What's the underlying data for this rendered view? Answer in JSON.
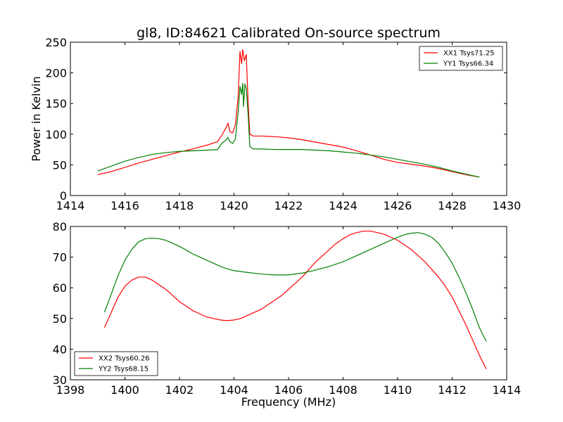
{
  "chart_data": [
    {
      "type": "line",
      "title": "gl8, ID:84621 Calibrated On-source spectrum",
      "xlabel": "",
      "ylabel": "Power in Kelvin",
      "xlim": [
        1414,
        1430
      ],
      "ylim": [
        0,
        250
      ],
      "xticks": [
        1414,
        1416,
        1418,
        1420,
        1422,
        1424,
        1426,
        1428,
        1430
      ],
      "yticks": [
        0,
        50,
        100,
        150,
        200,
        250
      ],
      "grid": false,
      "legend": "top-right",
      "series": [
        {
          "name": "XX1 Tsys71.25",
          "color": "#ff0000",
          "points": [
            [
              1415.0,
              34
            ],
            [
              1415.5,
              39
            ],
            [
              1416.0,
              46
            ],
            [
              1416.5,
              53
            ],
            [
              1417.0,
              59
            ],
            [
              1417.5,
              65
            ],
            [
              1418.0,
              71
            ],
            [
              1418.5,
              76
            ],
            [
              1419.0,
              82
            ],
            [
              1419.4,
              88
            ],
            [
              1419.55,
              98
            ],
            [
              1419.7,
              110
            ],
            [
              1419.78,
              118
            ],
            [
              1419.85,
              104
            ],
            [
              1419.95,
              102
            ],
            [
              1420.05,
              115
            ],
            [
              1420.15,
              160
            ],
            [
              1420.22,
              235
            ],
            [
              1420.28,
              215
            ],
            [
              1420.32,
              238
            ],
            [
              1420.38,
              220
            ],
            [
              1420.45,
              230
            ],
            [
              1420.52,
              150
            ],
            [
              1420.58,
              100
            ],
            [
              1420.7,
              97
            ],
            [
              1421.0,
              97
            ],
            [
              1421.5,
              96
            ],
            [
              1422.0,
              94
            ],
            [
              1422.5,
              91
            ],
            [
              1423.0,
              87
            ],
            [
              1423.5,
              83
            ],
            [
              1424.0,
              79
            ],
            [
              1424.5,
              73
            ],
            [
              1425.0,
              66
            ],
            [
              1425.5,
              59
            ],
            [
              1426.0,
              54
            ],
            [
              1426.5,
              51
            ],
            [
              1427.0,
              48
            ],
            [
              1427.5,
              44
            ],
            [
              1428.0,
              39
            ],
            [
              1428.5,
              34
            ],
            [
              1429.0,
              30
            ]
          ]
        },
        {
          "name": "YY1 Tsys66.34",
          "color": "#008000",
          "points": [
            [
              1415.0,
              40
            ],
            [
              1415.5,
              48
            ],
            [
              1416.0,
              56
            ],
            [
              1416.5,
              62
            ],
            [
              1417.0,
              67
            ],
            [
              1417.5,
              70
            ],
            [
              1418.0,
              72
            ],
            [
              1418.5,
              73
            ],
            [
              1419.0,
              74
            ],
            [
              1419.4,
              75
            ],
            [
              1419.55,
              85
            ],
            [
              1419.7,
              90
            ],
            [
              1419.78,
              95
            ],
            [
              1419.85,
              88
            ],
            [
              1419.95,
              85
            ],
            [
              1420.05,
              92
            ],
            [
              1420.15,
              135
            ],
            [
              1420.22,
              178
            ],
            [
              1420.28,
              165
            ],
            [
              1420.32,
              183
            ],
            [
              1420.35,
              145
            ],
            [
              1420.4,
              182
            ],
            [
              1420.45,
              175
            ],
            [
              1420.52,
              130
            ],
            [
              1420.58,
              80
            ],
            [
              1420.7,
              76
            ],
            [
              1421.0,
              76
            ],
            [
              1421.5,
              75
            ],
            [
              1422.0,
              75
            ],
            [
              1422.5,
              75
            ],
            [
              1423.0,
              74
            ],
            [
              1423.5,
              73
            ],
            [
              1424.0,
              71
            ],
            [
              1424.5,
              69
            ],
            [
              1425.0,
              66
            ],
            [
              1425.5,
              63
            ],
            [
              1426.0,
              59
            ],
            [
              1426.5,
              55
            ],
            [
              1427.0,
              51
            ],
            [
              1427.5,
              46
            ],
            [
              1428.0,
              40
            ],
            [
              1428.5,
              35
            ],
            [
              1429.0,
              30
            ]
          ]
        }
      ]
    },
    {
      "type": "line",
      "title": "",
      "xlabel": "Frequency (MHz)",
      "ylabel": "",
      "xlim": [
        1398,
        1414
      ],
      "ylim": [
        30,
        80
      ],
      "xticks": [
        1398,
        1400,
        1402,
        1404,
        1406,
        1408,
        1410,
        1412,
        1414
      ],
      "yticks": [
        30,
        40,
        50,
        60,
        70,
        80
      ],
      "grid": false,
      "legend": "bottom-left",
      "series": [
        {
          "name": "XX2 Tsys60.26",
          "color": "#ff0000",
          "points": [
            [
              1399.25,
              47
            ],
            [
              1399.5,
              52
            ],
            [
              1399.75,
              57
            ],
            [
              1400.0,
              60.5
            ],
            [
              1400.25,
              62.5
            ],
            [
              1400.5,
              63.5
            ],
            [
              1400.75,
              63.5
            ],
            [
              1401.0,
              62.5
            ],
            [
              1401.25,
              61
            ],
            [
              1401.5,
              59.5
            ],
            [
              1401.75,
              57.5
            ],
            [
              1402.0,
              55.5
            ],
            [
              1402.25,
              54
            ],
            [
              1402.5,
              52.5
            ],
            [
              1402.75,
              51.5
            ],
            [
              1403.0,
              50.5
            ],
            [
              1403.25,
              50
            ],
            [
              1403.5,
              49.5
            ],
            [
              1403.75,
              49.3
            ],
            [
              1404.0,
              49.5
            ],
            [
              1404.25,
              50
            ],
            [
              1404.5,
              51
            ],
            [
              1404.75,
              52
            ],
            [
              1405.0,
              53
            ],
            [
              1405.25,
              54.5
            ],
            [
              1405.5,
              56
            ],
            [
              1405.75,
              57.5
            ],
            [
              1406.0,
              59.5
            ],
            [
              1406.25,
              61.5
            ],
            [
              1406.5,
              63.5
            ],
            [
              1406.75,
              66
            ],
            [
              1407.0,
              68.5
            ],
            [
              1407.25,
              70.5
            ],
            [
              1407.5,
              72.5
            ],
            [
              1407.75,
              74.5
            ],
            [
              1408.0,
              76
            ],
            [
              1408.25,
              77.3
            ],
            [
              1408.5,
              78
            ],
            [
              1408.75,
              78.5
            ],
            [
              1409.0,
              78.5
            ],
            [
              1409.25,
              78
            ],
            [
              1409.5,
              77.5
            ],
            [
              1409.75,
              76.5
            ],
            [
              1410.0,
              75.5
            ],
            [
              1410.25,
              74
            ],
            [
              1410.5,
              72.5
            ],
            [
              1410.75,
              70.5
            ],
            [
              1411.0,
              68.5
            ],
            [
              1411.25,
              66
            ],
            [
              1411.5,
              63.5
            ],
            [
              1411.75,
              60.5
            ],
            [
              1412.0,
              57
            ],
            [
              1412.25,
              52.5
            ],
            [
              1412.5,
              48
            ],
            [
              1412.75,
              43
            ],
            [
              1413.0,
              38
            ],
            [
              1413.25,
              33.5
            ]
          ]
        },
        {
          "name": "YY2 Tsys68.15",
          "color": "#008000",
          "points": [
            [
              1399.25,
              52
            ],
            [
              1399.5,
              58
            ],
            [
              1399.75,
              64
            ],
            [
              1400.0,
              69
            ],
            [
              1400.25,
              72.5
            ],
            [
              1400.5,
              75
            ],
            [
              1400.75,
              76
            ],
            [
              1401.0,
              76.2
            ],
            [
              1401.25,
              76
            ],
            [
              1401.5,
              75.5
            ],
            [
              1401.75,
              74.5
            ],
            [
              1402.0,
              73.5
            ],
            [
              1402.25,
              72.3
            ],
            [
              1402.5,
              71
            ],
            [
              1402.75,
              70
            ],
            [
              1403.0,
              69
            ],
            [
              1403.25,
              68
            ],
            [
              1403.5,
              67
            ],
            [
              1403.75,
              66.2
            ],
            [
              1404.0,
              65.6
            ],
            [
              1404.5,
              65
            ],
            [
              1405.0,
              64.5
            ],
            [
              1405.5,
              64.2
            ],
            [
              1406.0,
              64.2
            ],
            [
              1406.5,
              64.8
            ],
            [
              1407.0,
              65.8
            ],
            [
              1407.5,
              67
            ],
            [
              1408.0,
              68.5
            ],
            [
              1408.5,
              70.5
            ],
            [
              1409.0,
              72.5
            ],
            [
              1409.5,
              74.5
            ],
            [
              1410.0,
              76.5
            ],
            [
              1410.25,
              77.3
            ],
            [
              1410.5,
              77.8
            ],
            [
              1410.75,
              78
            ],
            [
              1411.0,
              77.5
            ],
            [
              1411.25,
              76.5
            ],
            [
              1411.5,
              74.5
            ],
            [
              1411.75,
              71.5
            ],
            [
              1412.0,
              68
            ],
            [
              1412.25,
              63.5
            ],
            [
              1412.5,
              58.5
            ],
            [
              1412.75,
              53
            ],
            [
              1413.0,
              47
            ],
            [
              1413.25,
              42.5
            ]
          ]
        }
      ]
    }
  ]
}
